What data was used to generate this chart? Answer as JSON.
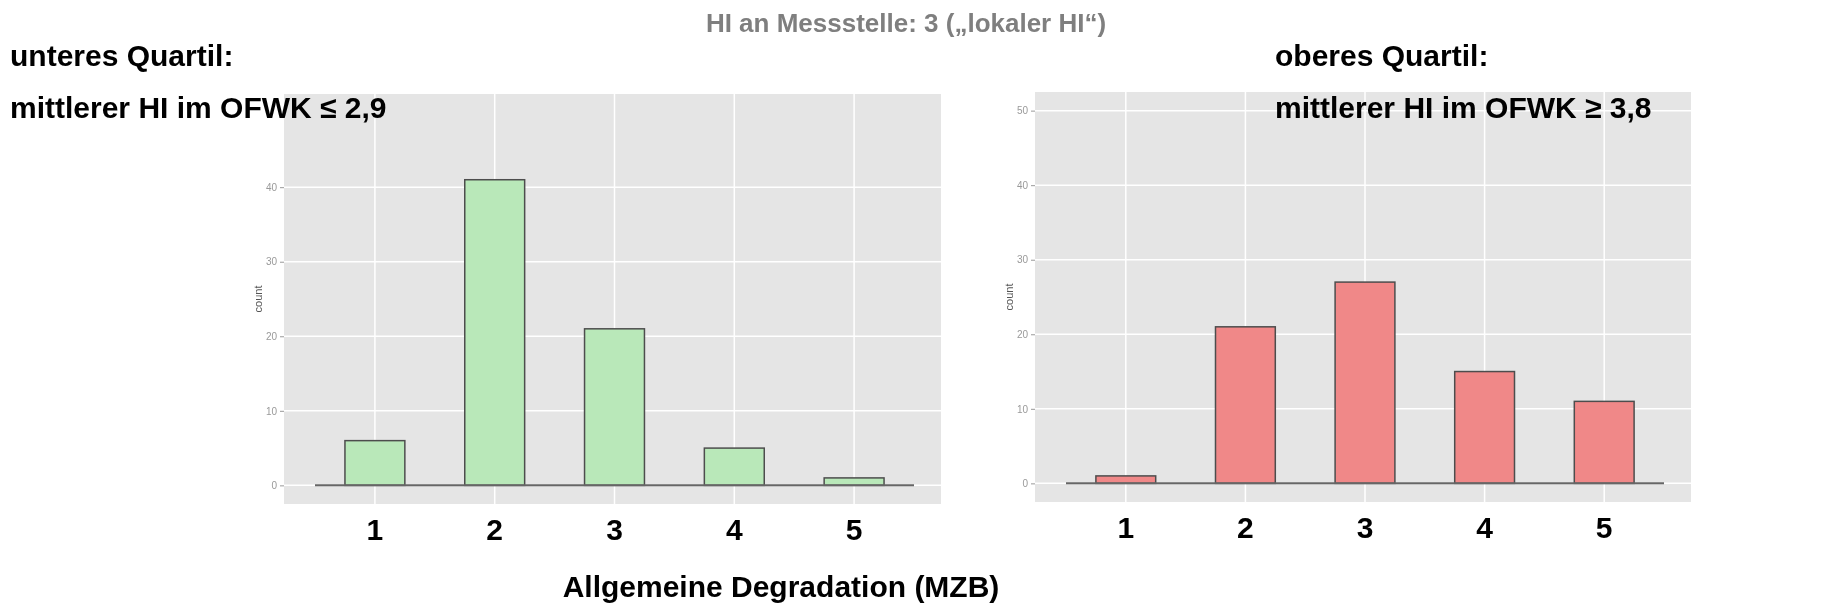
{
  "chart_data": [
    {
      "type": "bar",
      "title": "unteres Quartil:",
      "subtitle": "mittlerer HI im OFWK ≤ 2,9",
      "annotations": [
        "HI an Messstelle: 3 („lokaler HI“)"
      ],
      "xlabel": "Allgemeine Degradation (MZB)",
      "ylabel": "count",
      "categories": [
        "1",
        "2",
        "3",
        "4",
        "5"
      ],
      "values": [
        6,
        41,
        21,
        5,
        1
      ],
      "color": "#b9e8b9",
      "ylim": [
        -2.5,
        52.5
      ],
      "yticks": [
        0,
        10,
        20,
        30,
        40
      ],
      "grid": true
    },
    {
      "type": "bar",
      "title": "oberes Quartil:",
      "subtitle": "mittlerer HI im OFWK ≥ 3,8",
      "ylabel": "count",
      "categories": [
        "1",
        "2",
        "3",
        "4",
        "5"
      ],
      "values": [
        1,
        21,
        27,
        15,
        11
      ],
      "color": "#f08888",
      "ylim": [
        -2.5,
        52.5
      ],
      "yticks": [
        0,
        10,
        20,
        30,
        40,
        50
      ],
      "grid": true
    }
  ]
}
